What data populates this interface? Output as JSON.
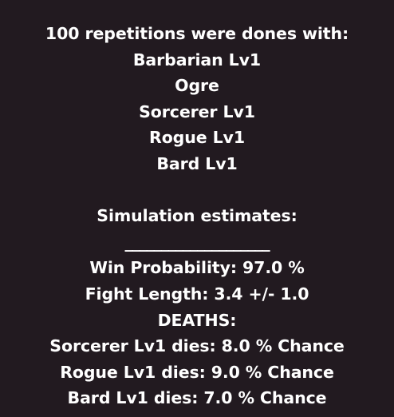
{
  "header": {
    "intro": "100 repetitions were dones with:",
    "participants": [
      "Barbarian Lv1",
      "Ogre",
      "Sorcerer Lv1",
      "Rogue Lv1",
      "Bard Lv1"
    ]
  },
  "results": {
    "heading": "Simulation estimates:",
    "divider": "____________________",
    "win_probability": "Win Probability: 97.0 %",
    "fight_length": "Fight Length: 3.4 +/- 1.0",
    "deaths_heading": "DEATHS:",
    "deaths": [
      "Sorcerer Lv1 dies: 8.0 % Chance",
      "Rogue Lv1 dies: 9.0 % Chance",
      "Bard Lv1 dies: 7.0 % Chance"
    ]
  }
}
